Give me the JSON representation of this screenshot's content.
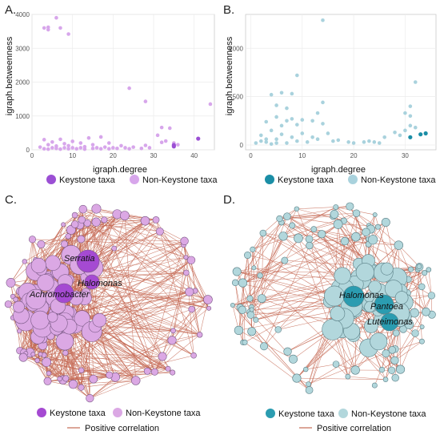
{
  "panels": {
    "A": {
      "letter": "A."
    },
    "B": {
      "letter": "B."
    },
    "C": {
      "letter": "C."
    },
    "D": {
      "letter": "D."
    }
  },
  "chart_data": [
    {
      "panel": "A",
      "type": "scatter",
      "xlabel": "igraph.degree",
      "ylabel": "igraph.betweenness",
      "xlim": [
        0,
        45
      ],
      "ylim": [
        0,
        4000
      ],
      "xticks": [
        0,
        10,
        20,
        30,
        40
      ],
      "yticks": [
        0,
        1000,
        2000,
        3000,
        4000
      ],
      "grid": true,
      "colors": {
        "keystone": "#9b4fd4",
        "non_keystone": "#d7a6eb"
      },
      "legend": {
        "keystone_label": "Keystone taxa",
        "non_keystone_label": "Non-Keystone taxa",
        "placement": "bottom"
      },
      "series": [
        {
          "name": "Keystone taxa",
          "points": [
            [
              41,
              330
            ],
            [
              35,
              140
            ],
            [
              35,
              100
            ]
          ]
        },
        {
          "name": "Non-Keystone taxa",
          "points": [
            [
              3,
              3600
            ],
            [
              4,
              3550
            ],
            [
              4,
              3620
            ],
            [
              6,
              3900
            ],
            [
              7,
              3600
            ],
            [
              9,
              3420
            ],
            [
              24,
              1820
            ],
            [
              28,
              1430
            ],
            [
              32,
              660
            ],
            [
              44,
              1350
            ],
            [
              2,
              80
            ],
            [
              3,
              300
            ],
            [
              3,
              30
            ],
            [
              4,
              150
            ],
            [
              4,
              20
            ],
            [
              5,
              60
            ],
            [
              5,
              230
            ],
            [
              6,
              40
            ],
            [
              6,
              110
            ],
            [
              7,
              20
            ],
            [
              7,
              310
            ],
            [
              8,
              60
            ],
            [
              8,
              180
            ],
            [
              9,
              30
            ],
            [
              9,
              120
            ],
            [
              10,
              250
            ],
            [
              10,
              60
            ],
            [
              11,
              30
            ],
            [
              12,
              200
            ],
            [
              12,
              60
            ],
            [
              13,
              20
            ],
            [
              13,
              90
            ],
            [
              14,
              350
            ],
            [
              15,
              40
            ],
            [
              15,
              150
            ],
            [
              16,
              60
            ],
            [
              17,
              380
            ],
            [
              17,
              30
            ],
            [
              18,
              80
            ],
            [
              19,
              200
            ],
            [
              19,
              30
            ],
            [
              20,
              60
            ],
            [
              21,
              40
            ],
            [
              22,
              120
            ],
            [
              23,
              60
            ],
            [
              24,
              30
            ],
            [
              25,
              80
            ],
            [
              27,
              40
            ],
            [
              28,
              130
            ],
            [
              29,
              60
            ],
            [
              31,
              430
            ],
            [
              32,
              220
            ],
            [
              33,
              260
            ],
            [
              34,
              640
            ],
            [
              35,
              200
            ],
            [
              36,
              150
            ]
          ]
        }
      ]
    },
    {
      "panel": "B",
      "type": "scatter",
      "xlabel": "igraph.degree",
      "ylabel": "igraph.betweenness",
      "xlim": [
        -1,
        36
      ],
      "ylim": [
        -50,
        1350
      ],
      "xticks": [
        0,
        10,
        20,
        30
      ],
      "yticks": [
        0,
        500,
        1000
      ],
      "grid": true,
      "colors": {
        "keystone": "#1b8ea6",
        "non_keystone": "#a9d2dd"
      },
      "legend": {
        "keystone_label": "Keystone taxa",
        "non_keystone_label": "Non-Keystone taxa",
        "placement": "bottom"
      },
      "series": [
        {
          "name": "Keystone taxa",
          "points": [
            [
              31,
              80
            ],
            [
              33,
              110
            ],
            [
              34,
              120
            ]
          ]
        },
        {
          "name": "Non-Keystone taxa",
          "points": [
            [
              14,
              1290
            ],
            [
              9,
              720
            ],
            [
              32,
              650
            ],
            [
              4,
              520
            ],
            [
              6,
              540
            ],
            [
              8,
              530
            ],
            [
              14,
              440
            ],
            [
              5,
              410
            ],
            [
              7,
              380
            ],
            [
              31,
              400
            ],
            [
              13,
              330
            ],
            [
              3,
              240
            ],
            [
              5,
              290
            ],
            [
              6,
              200
            ],
            [
              7,
              250
            ],
            [
              8,
              270
            ],
            [
              9,
              210
            ],
            [
              10,
              260
            ],
            [
              12,
              250
            ],
            [
              14,
              220
            ],
            [
              30,
              330
            ],
            [
              31,
              300
            ],
            [
              2,
              100
            ],
            [
              3,
              30
            ],
            [
              4,
              150
            ],
            [
              5,
              60
            ],
            [
              6,
              110
            ],
            [
              7,
              20
            ],
            [
              8,
              80
            ],
            [
              9,
              40
            ],
            [
              10,
              120
            ],
            [
              11,
              30
            ],
            [
              12,
              80
            ],
            [
              13,
              60
            ],
            [
              15,
              120
            ],
            [
              16,
              40
            ],
            [
              17,
              50
            ],
            [
              19,
              30
            ],
            [
              20,
              20
            ],
            [
              22,
              30
            ],
            [
              23,
              40
            ],
            [
              24,
              30
            ],
            [
              25,
              20
            ],
            [
              26,
              80
            ],
            [
              28,
              130
            ],
            [
              29,
              100
            ],
            [
              30,
              150
            ],
            [
              31,
              200
            ],
            [
              32,
              180
            ],
            [
              1,
              20
            ],
            [
              2,
              40
            ],
            [
              3,
              60
            ],
            [
              4,
              10
            ],
            [
              5,
              20
            ]
          ]
        }
      ]
    },
    {
      "panel": "C",
      "type": "network",
      "labels": [
        "Serratia",
        "Halomonas",
        "Achromobacter"
      ],
      "colors": {
        "keystone": "#a54ad2",
        "non_keystone": "#dba8e4",
        "edge": "#c56a55"
      },
      "legend": {
        "keystone_label": "Keystone taxa",
        "non_keystone_label": "Non-Keystone taxa",
        "edge_label": "Positive correlation"
      }
    },
    {
      "panel": "D",
      "type": "network",
      "labels": [
        "Halomonas",
        "Pantoea",
        "Luteimonas"
      ],
      "colors": {
        "keystone": "#2b9cb0",
        "non_keystone": "#b2d7dc",
        "edge": "#c56a55"
      },
      "legend": {
        "keystone_label": "Keystone taxa",
        "non_keystone_label": "Non-Keystone taxa",
        "edge_label": "Positive correlation"
      }
    }
  ]
}
